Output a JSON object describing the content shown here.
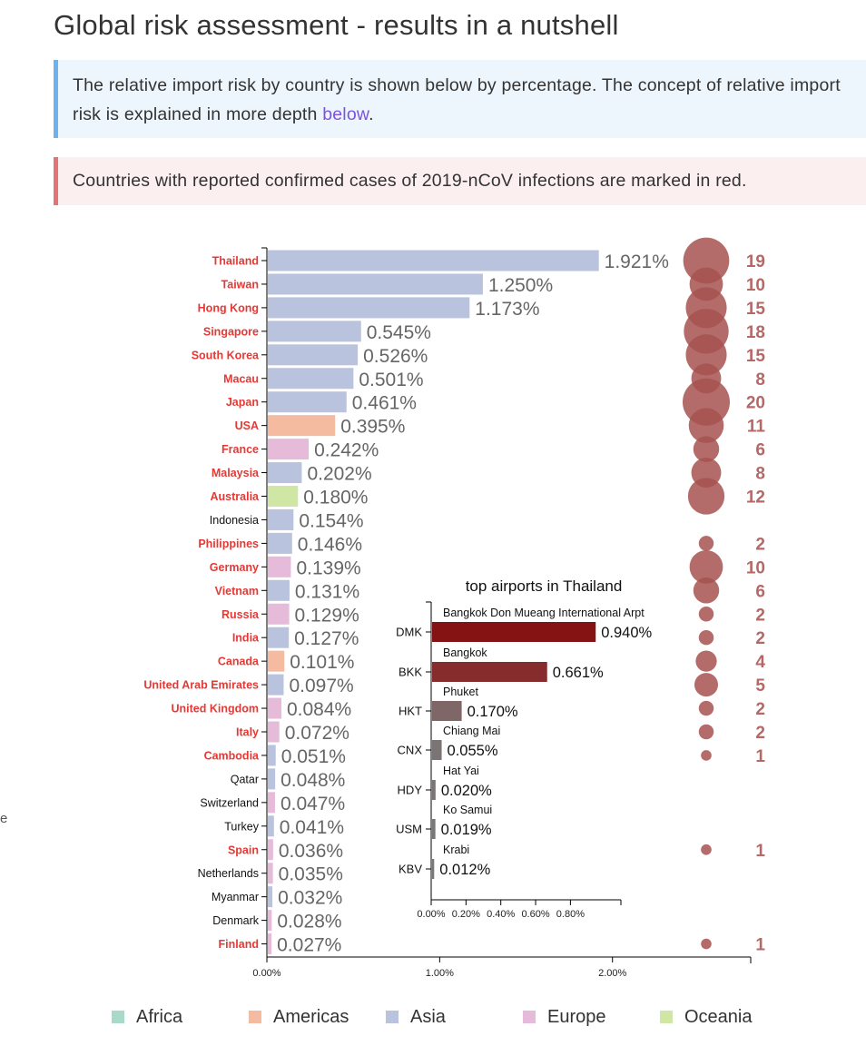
{
  "page": {
    "title": "Global risk assessment - results in a nutshell",
    "info_text": "The relative import risk by country is shown below by percentage. The concept of relative import risk is explained in more depth ",
    "info_link": "below",
    "info_suffix": ".",
    "danger_text": "Countries with reported confirmed cases of 2019-nCoV infections are marked in red.",
    "side_char": "e"
  },
  "colors": {
    "Africa": "#a9d9c8",
    "Americas": "#f4bba0",
    "Asia": "#bac3de",
    "Europe": "#e6bad9",
    "Oceania": "#cfe6a4",
    "confirmed_label": "#e53935",
    "bubble": "#a65250",
    "case_count": "#b56866",
    "inset_bars": [
      "#861313",
      "#862c2c",
      "#806767",
      "#7b7474",
      "#7a7575",
      "#797777",
      "#787878"
    ]
  },
  "chart_data": [
    {
      "type": "bar",
      "title": "",
      "xlabel": "",
      "ylabel": "",
      "xlim": [
        0,
        0.028
      ],
      "x_ticks": [
        "0.00%",
        "1.00%",
        "2.00%"
      ],
      "categories": [
        "Thailand",
        "Taiwan",
        "Hong Kong",
        "Singapore",
        "South Korea",
        "Macau",
        "Japan",
        "USA",
        "France",
        "Malaysia",
        "Australia",
        "Indonesia",
        "Philippines",
        "Germany",
        "Vietnam",
        "Russia",
        "India",
        "Canada",
        "United Arab Emirates",
        "United Kingdom",
        "Italy",
        "Cambodia",
        "Qatar",
        "Switzerland",
        "Turkey",
        "Spain",
        "Netherlands",
        "Myanmar",
        "Denmark",
        "Finland"
      ],
      "values": [
        0.01921,
        0.0125,
        0.01173,
        0.00545,
        0.00526,
        0.00501,
        0.00461,
        0.00395,
        0.00242,
        0.00202,
        0.0018,
        0.00154,
        0.00146,
        0.00139,
        0.00131,
        0.00129,
        0.00127,
        0.00101,
        0.00097,
        0.00084,
        0.00072,
        0.00051,
        0.00048,
        0.00047,
        0.00041,
        0.00036,
        0.00035,
        0.00032,
        0.00028,
        0.00027
      ],
      "value_labels": [
        "1.921%",
        "1.250%",
        "1.173%",
        "0.545%",
        "0.526%",
        "0.501%",
        "0.461%",
        "0.395%",
        "0.242%",
        "0.202%",
        "0.180%",
        "0.154%",
        "0.146%",
        "0.139%",
        "0.131%",
        "0.129%",
        "0.127%",
        "0.101%",
        "0.097%",
        "0.084%",
        "0.072%",
        "0.051%",
        "0.048%",
        "0.047%",
        "0.041%",
        "0.036%",
        "0.035%",
        "0.032%",
        "0.028%",
        "0.027%"
      ],
      "regions": [
        "Asia",
        "Asia",
        "Asia",
        "Asia",
        "Asia",
        "Asia",
        "Asia",
        "Americas",
        "Europe",
        "Asia",
        "Oceania",
        "Asia",
        "Asia",
        "Europe",
        "Asia",
        "Europe",
        "Asia",
        "Americas",
        "Asia",
        "Europe",
        "Europe",
        "Asia",
        "Asia",
        "Europe",
        "Asia",
        "Europe",
        "Europe",
        "Asia",
        "Europe",
        "Europe"
      ],
      "confirmed": [
        true,
        true,
        true,
        true,
        true,
        true,
        true,
        true,
        true,
        true,
        true,
        false,
        true,
        true,
        true,
        true,
        true,
        true,
        true,
        true,
        true,
        true,
        false,
        false,
        false,
        true,
        false,
        false,
        false,
        true
      ],
      "case_counts": [
        19,
        10,
        15,
        18,
        15,
        8,
        20,
        11,
        6,
        8,
        12,
        null,
        2,
        10,
        6,
        2,
        2,
        4,
        5,
        2,
        2,
        1,
        null,
        null,
        null,
        1,
        null,
        null,
        null,
        1
      ],
      "case_labels": [
        "19",
        "10",
        "15",
        "18",
        "15",
        "8",
        "20",
        "11",
        "6",
        "8",
        "12",
        "",
        "2",
        "10",
        "6",
        "2",
        "2",
        "4",
        "5",
        "2",
        "2",
        "1",
        "",
        "",
        "",
        "1",
        "",
        "",
        "",
        "1"
      ],
      "legend": [
        "Africa",
        "Americas",
        "Asia",
        "Europe",
        "Oceania"
      ]
    },
    {
      "type": "bar",
      "title": "top airports in Thailand",
      "xlabel": "",
      "ylabel": "",
      "xlim": [
        0,
        0.0109
      ],
      "x_ticks": [
        "0.00%",
        "0.20%",
        "0.40%",
        "0.60%",
        "0.80%"
      ],
      "categories": [
        "DMK",
        "BKK",
        "HKT",
        "CNX",
        "HDY",
        "USM",
        "KBV"
      ],
      "airport_names": [
        "Bangkok Don Mueang International Arpt",
        "Bangkok",
        "Phuket",
        "Chiang Mai",
        "Hat Yai",
        "Ko Samui",
        "Krabi"
      ],
      "values": [
        0.0094,
        0.00661,
        0.0017,
        0.00055,
        0.0002,
        0.00019,
        0.00012
      ],
      "value_labels": [
        "0.940%",
        "0.661%",
        "0.170%",
        "0.055%",
        "0.020%",
        "0.019%",
        "0.012%"
      ]
    }
  ]
}
